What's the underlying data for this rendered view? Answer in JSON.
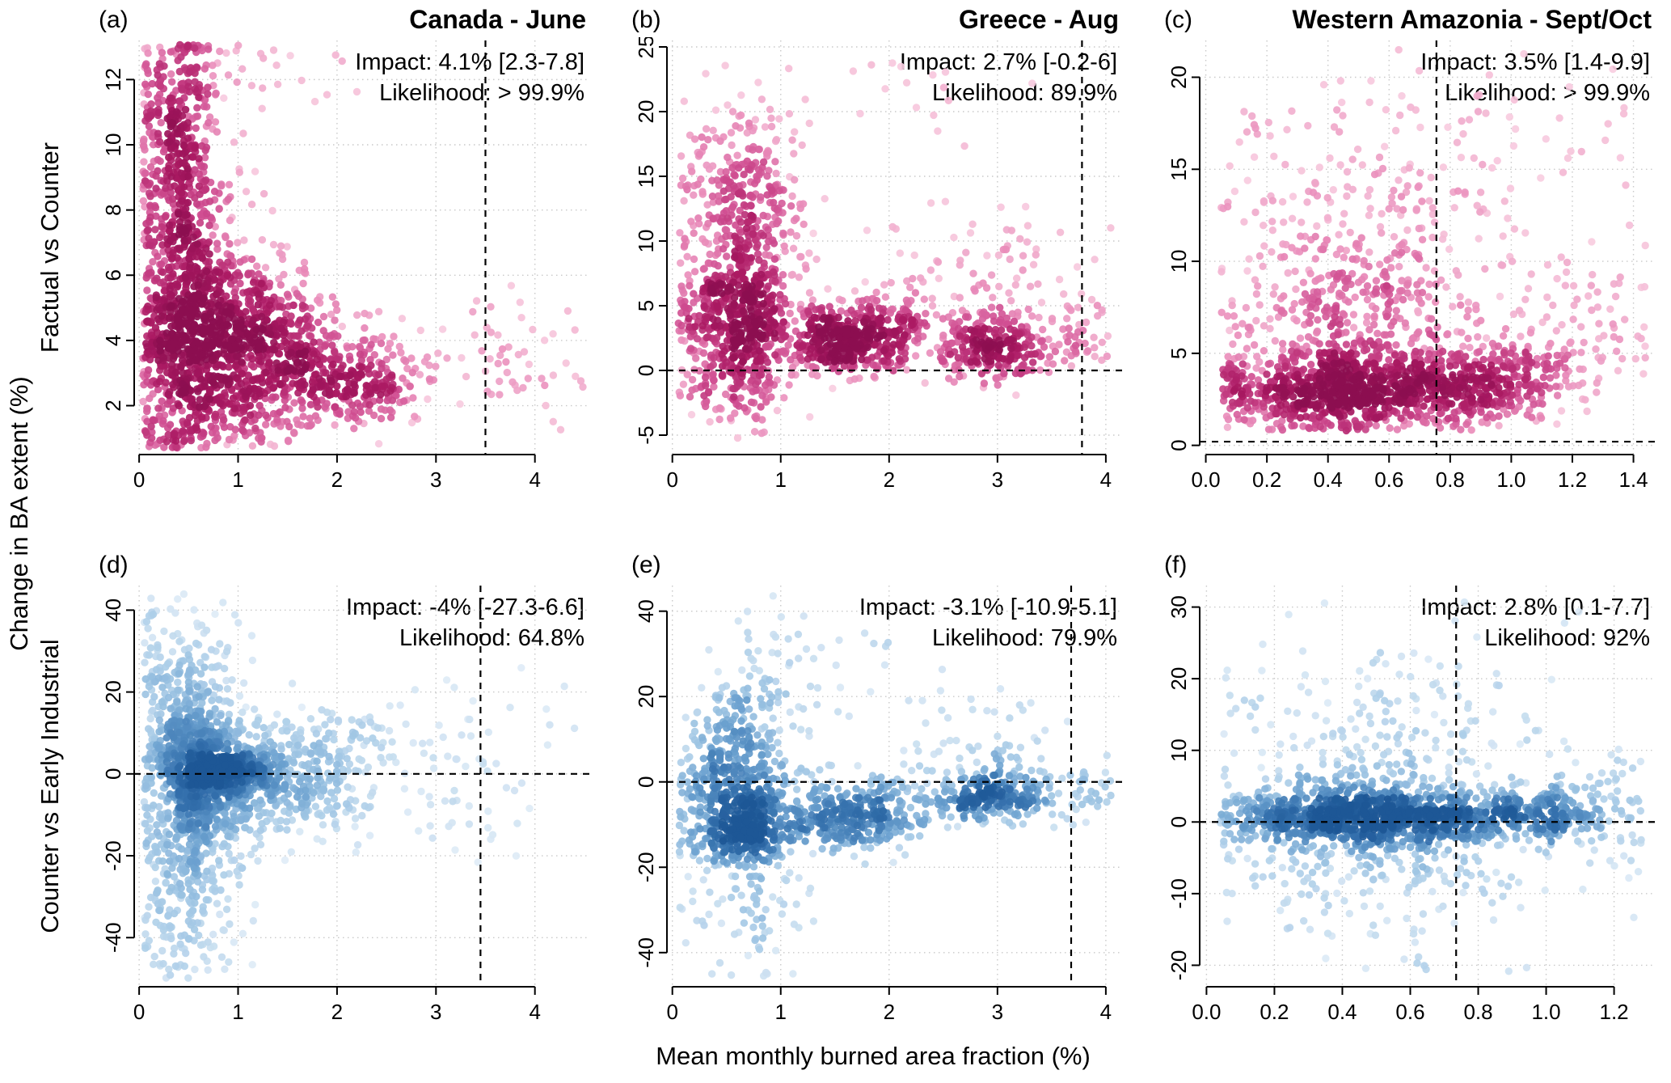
{
  "figure": {
    "xlabel": "Mean monthly burned area fraction (%)",
    "ylabel_outer": "Change in BA extent (%)",
    "row_labels": [
      "Factual vs Counter",
      "Counter vs Early Industrial"
    ]
  },
  "colors": {
    "grid": "#c9c9c9",
    "axis": "#000000",
    "refline": "#000000",
    "pink_ramp": [
      "#fce7f1",
      "#f6c3da",
      "#ea8fbc",
      "#d04f92",
      "#ab1a63",
      "#8c0e50"
    ],
    "blue_ramp": [
      "#edf4fb",
      "#cfe2f2",
      "#a3c8e5",
      "#699fce",
      "#3672ae",
      "#1d5796"
    ]
  },
  "cluster_format": "[n_points, x_mean, x_sd, y_mean, y_sd] — density-colored scatter clouds",
  "chart_data": [
    {
      "id": "a",
      "label": "(a)",
      "title": "Canada - June",
      "impact": "Impact: 4.1% [2.3-7.8]",
      "likelihood": "Likelihood: > 99.9%",
      "type": "scatter",
      "palette": "pink",
      "seed": 11,
      "xlim": [
        -0.05,
        4.55
      ],
      "ylim": [
        0.5,
        13.2
      ],
      "xticks": [
        0,
        1,
        2,
        3,
        4
      ],
      "yticks": [
        2,
        4,
        6,
        8,
        10,
        12
      ],
      "xdec": 0,
      "vline": 3.5,
      "hline": null,
      "xclip": [
        0.04,
        4.5
      ],
      "yclip": [
        0.7,
        13.1
      ],
      "clusters": [
        [
          650,
          0.55,
          0.3,
          4.0,
          1.5
        ],
        [
          350,
          0.45,
          0.25,
          7.5,
          2.0
        ],
        [
          250,
          0.35,
          0.2,
          10.5,
          1.8
        ],
        [
          320,
          1.25,
          0.3,
          4.2,
          1.3
        ],
        [
          260,
          1.7,
          0.35,
          3.2,
          1.0
        ],
        [
          160,
          2.3,
          0.35,
          2.7,
          0.7
        ],
        [
          120,
          0.8,
          0.5,
          1.6,
          0.5
        ],
        [
          55,
          3.7,
          0.45,
          3.6,
          1.0
        ],
        [
          40,
          1.0,
          0.6,
          12.3,
          0.8
        ]
      ]
    },
    {
      "id": "b",
      "label": "(b)",
      "title": "Greece - Aug",
      "impact": "Impact: 2.7% [-0.2-6]",
      "likelihood": "Likelihood: 89.9%",
      "type": "scatter",
      "palette": "pink",
      "seed": 22,
      "xlim": [
        -0.05,
        4.15
      ],
      "ylim": [
        -6.5,
        25.5
      ],
      "xticks": [
        0,
        1,
        2,
        3,
        4
      ],
      "yticks": [
        -5,
        0,
        5,
        10,
        15,
        20,
        25
      ],
      "xdec": 0,
      "vline": 3.78,
      "hline": 0,
      "xclip": [
        0.05,
        4.05
      ],
      "yclip": [
        -6,
        25
      ],
      "clusters": [
        [
          420,
          0.6,
          0.27,
          3.5,
          2.5
        ],
        [
          260,
          0.65,
          0.3,
          9.0,
          3.5
        ],
        [
          150,
          0.6,
          0.28,
          15.5,
          3.0
        ],
        [
          80,
          0.55,
          0.25,
          -1.5,
          1.5
        ],
        [
          330,
          1.55,
          0.28,
          2.3,
          1.4
        ],
        [
          110,
          2.05,
          0.18,
          3.2,
          1.6
        ],
        [
          260,
          2.95,
          0.3,
          2.0,
          1.3
        ],
        [
          70,
          2.9,
          0.45,
          7.5,
          2.5
        ],
        [
          40,
          3.75,
          0.2,
          3.0,
          2.0
        ],
        [
          25,
          1.5,
          0.8,
          21.0,
          2.0
        ]
      ]
    },
    {
      "id": "c",
      "label": "(c)",
      "title": "Western Amazonia - Sept/Oct",
      "impact": "Impact: 3.5% [1.4-9.9]",
      "likelihood": "Likelihood: > 99.9%",
      "type": "scatter",
      "palette": "pink",
      "seed": 33,
      "xlim": [
        -0.02,
        1.47
      ],
      "ylim": [
        -0.5,
        22
      ],
      "xticks": [
        0,
        0.2,
        0.4,
        0.6,
        0.8,
        1.0,
        1.2,
        1.4
      ],
      "yticks": [
        0,
        5,
        10,
        15,
        20
      ],
      "xdec": 1,
      "vline": 0.755,
      "hline": 0.2,
      "xclip": [
        0.05,
        1.44
      ],
      "yclip": [
        0.8,
        21.5
      ],
      "clusters": [
        [
          700,
          0.42,
          0.2,
          3.0,
          1.1
        ],
        [
          280,
          0.78,
          0.14,
          3.2,
          1.2
        ],
        [
          120,
          1.02,
          0.1,
          3.8,
          1.3
        ],
        [
          300,
          0.5,
          0.24,
          7.0,
          2.0
        ],
        [
          180,
          0.55,
          0.28,
          11.5,
          2.5
        ],
        [
          80,
          0.7,
          0.35,
          16.5,
          2.2
        ],
        [
          60,
          1.2,
          0.12,
          5.5,
          1.8
        ],
        [
          25,
          1.33,
          0.08,
          6.5,
          2.5
        ]
      ]
    },
    {
      "id": "d",
      "label": "(d)",
      "title": "",
      "impact": "Impact: -4% [-27.3-6.6]",
      "likelihood": "Likelihood: 64.8%",
      "type": "scatter",
      "palette": "blue",
      "seed": 44,
      "xlim": [
        -0.05,
        4.55
      ],
      "ylim": [
        -52,
        46
      ],
      "xticks": [
        0,
        1,
        2,
        3,
        4
      ],
      "yticks": [
        -40,
        -20,
        0,
        20,
        40
      ],
      "xdec": 0,
      "vline": 3.45,
      "hline": 0,
      "xclip": [
        0.05,
        4.45
      ],
      "yclip": [
        -50,
        44
      ],
      "clusters": [
        [
          500,
          0.7,
          0.3,
          -2,
          6
        ],
        [
          220,
          0.85,
          0.25,
          1.0,
          2.2
        ],
        [
          300,
          0.5,
          0.25,
          12,
          9
        ],
        [
          300,
          0.5,
          0.28,
          -18,
          10
        ],
        [
          260,
          1.45,
          0.35,
          -1,
          7
        ],
        [
          120,
          2.0,
          0.35,
          1,
          9
        ],
        [
          80,
          0.4,
          0.3,
          32,
          7
        ],
        [
          80,
          0.45,
          0.3,
          -38,
          6
        ],
        [
          60,
          3.3,
          0.55,
          0,
          11
        ]
      ]
    },
    {
      "id": "e",
      "label": "(e)",
      "title": "",
      "impact": "Impact: -3.1% [-10.9-5.1]",
      "likelihood": "Likelihood: 79.9%",
      "type": "scatter",
      "palette": "blue",
      "seed": 55,
      "xlim": [
        -0.05,
        4.15
      ],
      "ylim": [
        -48,
        46
      ],
      "xticks": [
        0,
        1,
        2,
        3,
        4
      ],
      "yticks": [
        -40,
        -20,
        0,
        20,
        40
      ],
      "xdec": 0,
      "vline": 3.68,
      "hline": 0,
      "xclip": [
        0.05,
        4.05
      ],
      "yclip": [
        -46,
        44
      ],
      "clusters": [
        [
          380,
          0.62,
          0.25,
          -11,
          5
        ],
        [
          220,
          0.6,
          0.28,
          2,
          6
        ],
        [
          120,
          0.65,
          0.3,
          15,
          8
        ],
        [
          80,
          0.7,
          0.3,
          -30,
          8
        ],
        [
          200,
          1.5,
          0.3,
          -8,
          4
        ],
        [
          140,
          2.0,
          0.25,
          -6,
          5
        ],
        [
          230,
          2.95,
          0.3,
          -3.5,
          3
        ],
        [
          50,
          2.9,
          0.4,
          8,
          6
        ],
        [
          35,
          1.3,
          0.5,
          28,
          8
        ],
        [
          30,
          3.7,
          0.2,
          -2,
          5
        ]
      ]
    },
    {
      "id": "f",
      "label": "(f)",
      "title": "",
      "impact": "Impact: 2.8% [0.1-7.7]",
      "likelihood": "Likelihood: 92%",
      "type": "scatter",
      "palette": "blue",
      "seed": 66,
      "xlim": [
        -0.02,
        1.32
      ],
      "ylim": [
        -23,
        33
      ],
      "xticks": [
        0,
        0.2,
        0.4,
        0.6,
        0.8,
        1.0,
        1.2
      ],
      "yticks": [
        -20,
        -10,
        0,
        10,
        20,
        30
      ],
      "xdec": 1,
      "vline": 0.735,
      "hline": 0,
      "xclip": [
        0.04,
        1.28
      ],
      "yclip": [
        -21,
        31
      ],
      "clusters": [
        [
          700,
          0.45,
          0.2,
          0.8,
          1.8
        ],
        [
          250,
          0.8,
          0.18,
          1.0,
          2.0
        ],
        [
          280,
          0.5,
          0.24,
          6,
          7
        ],
        [
          200,
          0.5,
          0.24,
          -5,
          5
        ],
        [
          90,
          1.03,
          0.08,
          0.8,
          1.8
        ],
        [
          70,
          1.15,
          0.1,
          2,
          5
        ],
        [
          50,
          0.6,
          0.3,
          20,
          6
        ],
        [
          30,
          0.6,
          0.3,
          -15,
          4
        ]
      ]
    }
  ]
}
